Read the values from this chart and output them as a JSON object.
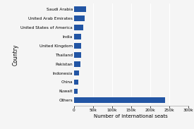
{
  "categories": [
    "Others",
    "Kuwait",
    "China",
    "Indonesia",
    "Pakistan",
    "Thailand",
    "United Kingdom",
    "India",
    "United States of America",
    "United Arab Emirates",
    "Saudi Arabia"
  ],
  "values": [
    240000,
    10000,
    12000,
    14000,
    17000,
    19000,
    20000,
    19000,
    25000,
    28000,
    32000
  ],
  "bar_color": "#2255a4",
  "xlabel": "Number of international seats",
  "ylabel": "Country",
  "xlim": [
    0,
    300000
  ],
  "xticks": [
    0,
    50000,
    100000,
    150000,
    200000,
    250000,
    300000
  ],
  "xtick_labels": [
    "0",
    "50k",
    "100k",
    "150k",
    "200k",
    "250k",
    "300k"
  ],
  "background_color": "#f5f5f5",
  "grid_color": "#ffffff",
  "bar_height": 0.6,
  "label_fontsize": 4.2,
  "tick_fontsize": 4.2,
  "axis_label_fontsize": 5.0,
  "ylabel_fontsize": 5.5
}
